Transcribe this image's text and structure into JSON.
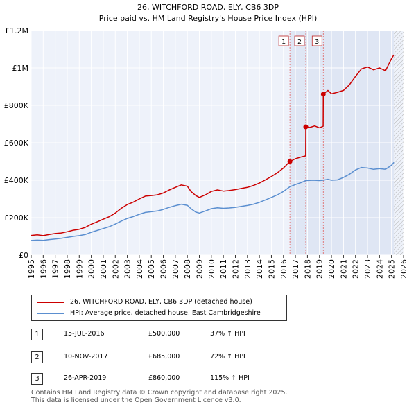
{
  "title": "26, WITCHFORD ROAD, ELY, CB6 3DP",
  "subtitle": "Price paid vs. HM Land Registry's House Price Index (HPI)",
  "legend": {
    "property_label": "26, WITCHFORD ROAD, ELY, CB6 3DP (detached house)",
    "hpi_label": "HPI: Average price, detached house, East Cambridgeshire"
  },
  "sales": [
    {
      "num": "1",
      "date": "15-JUL-2016",
      "price": "£500,000",
      "hpi": "37% ↑ HPI"
    },
    {
      "num": "2",
      "date": "10-NOV-2017",
      "price": "£685,000",
      "hpi": "72% ↑ HPI"
    },
    {
      "num": "3",
      "date": "26-APR-2019",
      "price": "£860,000",
      "hpi": "115% ↑ HPI"
    }
  ],
  "footer": {
    "line1": "Contains HM Land Registry data © Crown copyright and database right 2025.",
    "line2": "This data is licensed under the Open Government Licence v3.0."
  },
  "colors": {
    "property": "#cc0000",
    "hpi": "#5b8fd0",
    "plot_bg": "#eef2fa",
    "grid": "#ffffff",
    "marker_line": "#e06060"
  },
  "chart_data": {
    "type": "line",
    "x_range": [
      1995,
      2026
    ],
    "ylim": [
      0,
      1200000
    ],
    "y_ticks": [
      {
        "value": 0,
        "label": "£0"
      },
      {
        "value": 200000,
        "label": "£200K"
      },
      {
        "value": 400000,
        "label": "£400K"
      },
      {
        "value": 600000,
        "label": "£600K"
      },
      {
        "value": 800000,
        "label": "£800K"
      },
      {
        "value": 1000000,
        "label": "£1M"
      },
      {
        "value": 1200000,
        "label": "£1.2M"
      }
    ],
    "x_ticks": [
      "1995",
      "1996",
      "1997",
      "1998",
      "1999",
      "2000",
      "2001",
      "2002",
      "2003",
      "2004",
      "2005",
      "2006",
      "2007",
      "2008",
      "2009",
      "2010",
      "2011",
      "2012",
      "2013",
      "2014",
      "2015",
      "2016",
      "2017",
      "2018",
      "2019",
      "2020",
      "2021",
      "2022",
      "2023",
      "2024",
      "2025",
      "2026"
    ],
    "shaded_from": 2016.54,
    "future_from": 2025.2,
    "sale_markers": [
      {
        "label": "1",
        "x": 2016.54,
        "y": 500000
      },
      {
        "label": "2",
        "x": 2017.86,
        "y": 685000
      },
      {
        "label": "3",
        "x": 2019.32,
        "y": 860000
      }
    ],
    "series": [
      {
        "name": "26, WITCHFORD ROAD, ELY, CB6 3DP (detached house)",
        "points": [
          [
            1995,
            105000
          ],
          [
            1995.5,
            108000
          ],
          [
            1996,
            104000
          ],
          [
            1996.5,
            110000
          ],
          [
            1997,
            115000
          ],
          [
            1997.5,
            118000
          ],
          [
            1998,
            125000
          ],
          [
            1998.5,
            133000
          ],
          [
            1999,
            138000
          ],
          [
            1999.5,
            148000
          ],
          [
            2000,
            165000
          ],
          [
            2000.5,
            178000
          ],
          [
            2001,
            192000
          ],
          [
            2001.5,
            205000
          ],
          [
            2002,
            225000
          ],
          [
            2002.5,
            250000
          ],
          [
            2003,
            270000
          ],
          [
            2003.5,
            283000
          ],
          [
            2004,
            300000
          ],
          [
            2004.5,
            315000
          ],
          [
            2005,
            318000
          ],
          [
            2005.5,
            322000
          ],
          [
            2006,
            332000
          ],
          [
            2006.5,
            348000
          ],
          [
            2007,
            362000
          ],
          [
            2007.5,
            375000
          ],
          [
            2008,
            368000
          ],
          [
            2008.3,
            340000
          ],
          [
            2008.7,
            318000
          ],
          [
            2009,
            308000
          ],
          [
            2009.5,
            322000
          ],
          [
            2010,
            340000
          ],
          [
            2010.5,
            348000
          ],
          [
            2011,
            342000
          ],
          [
            2011.5,
            345000
          ],
          [
            2012,
            350000
          ],
          [
            2012.5,
            356000
          ],
          [
            2013,
            362000
          ],
          [
            2013.5,
            372000
          ],
          [
            2014,
            385000
          ],
          [
            2014.5,
            402000
          ],
          [
            2015,
            420000
          ],
          [
            2015.5,
            440000
          ],
          [
            2016,
            465000
          ],
          [
            2016.54,
            500000
          ],
          [
            2017,
            515000
          ],
          [
            2017.5,
            525000
          ],
          [
            2017.85,
            530000
          ],
          [
            2017.86,
            685000
          ],
          [
            2018.2,
            682000
          ],
          [
            2018.6,
            690000
          ],
          [
            2019,
            680000
          ],
          [
            2019.31,
            688000
          ],
          [
            2019.32,
            860000
          ],
          [
            2019.7,
            880000
          ],
          [
            2020,
            862000
          ],
          [
            2020.5,
            870000
          ],
          [
            2021,
            880000
          ],
          [
            2021.5,
            910000
          ],
          [
            2022,
            955000
          ],
          [
            2022.5,
            995000
          ],
          [
            2023,
            1005000
          ],
          [
            2023.5,
            990000
          ],
          [
            2024,
            1000000
          ],
          [
            2024.5,
            985000
          ],
          [
            2025,
            1050000
          ],
          [
            2025.2,
            1070000
          ]
        ]
      },
      {
        "name": "HPI: Average price, detached house, East Cambridgeshire",
        "points": [
          [
            1995,
            78000
          ],
          [
            1995.5,
            80000
          ],
          [
            1996,
            79000
          ],
          [
            1996.5,
            83000
          ],
          [
            1997,
            86000
          ],
          [
            1997.5,
            90000
          ],
          [
            1998,
            95000
          ],
          [
            1998.5,
            100000
          ],
          [
            1999,
            104000
          ],
          [
            1999.5,
            110000
          ],
          [
            2000,
            122000
          ],
          [
            2000.5,
            132000
          ],
          [
            2001,
            142000
          ],
          [
            2001.5,
            152000
          ],
          [
            2002,
            166000
          ],
          [
            2002.5,
            182000
          ],
          [
            2003,
            196000
          ],
          [
            2003.5,
            206000
          ],
          [
            2004,
            218000
          ],
          [
            2004.5,
            228000
          ],
          [
            2005,
            232000
          ],
          [
            2005.5,
            236000
          ],
          [
            2006,
            244000
          ],
          [
            2006.5,
            255000
          ],
          [
            2007,
            264000
          ],
          [
            2007.5,
            272000
          ],
          [
            2008,
            266000
          ],
          [
            2008.3,
            248000
          ],
          [
            2008.7,
            230000
          ],
          [
            2009,
            225000
          ],
          [
            2009.5,
            236000
          ],
          [
            2010,
            248000
          ],
          [
            2010.5,
            253000
          ],
          [
            2011,
            250000
          ],
          [
            2011.5,
            252000
          ],
          [
            2012,
            255000
          ],
          [
            2012.5,
            260000
          ],
          [
            2013,
            265000
          ],
          [
            2013.5,
            272000
          ],
          [
            2014,
            282000
          ],
          [
            2014.5,
            295000
          ],
          [
            2015,
            308000
          ],
          [
            2015.5,
            322000
          ],
          [
            2016,
            340000
          ],
          [
            2016.54,
            365000
          ],
          [
            2017,
            377000
          ],
          [
            2017.5,
            388000
          ],
          [
            2017.86,
            398000
          ],
          [
            2018.5,
            400000
          ],
          [
            2019,
            398000
          ],
          [
            2019.32,
            400000
          ],
          [
            2019.7,
            405000
          ],
          [
            2020,
            400000
          ],
          [
            2020.5,
            402000
          ],
          [
            2021,
            415000
          ],
          [
            2021.5,
            432000
          ],
          [
            2022,
            455000
          ],
          [
            2022.5,
            468000
          ],
          [
            2023,
            465000
          ],
          [
            2023.5,
            458000
          ],
          [
            2024,
            462000
          ],
          [
            2024.5,
            458000
          ],
          [
            2025,
            480000
          ],
          [
            2025.2,
            495000
          ]
        ]
      }
    ]
  }
}
